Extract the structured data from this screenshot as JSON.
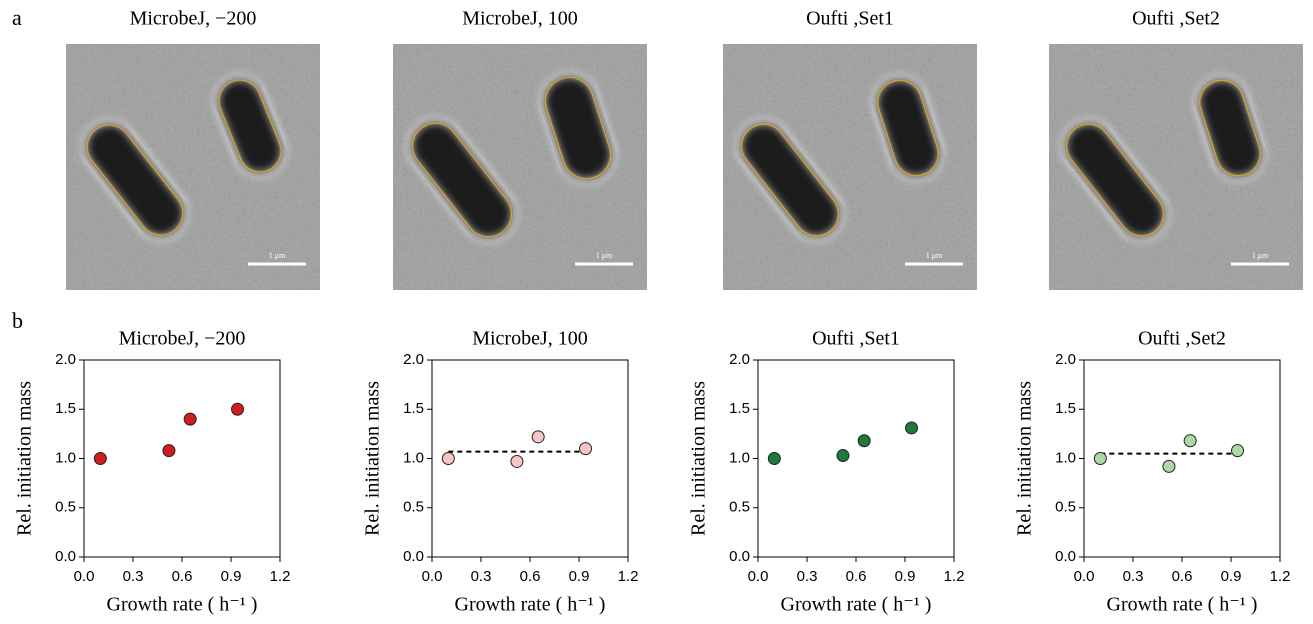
{
  "panel_labels": [
    "a",
    "b"
  ],
  "images": [
    {
      "title": "MicrobeJ, −200",
      "scale_bar": "1 μm"
    },
    {
      "title": "MicrobeJ, 100",
      "scale_bar": "1 μm"
    },
    {
      "title": "Oufti ,Set1",
      "scale_bar": "1 μm"
    },
    {
      "title": "Oufti ,Set2",
      "scale_bar": "1 μm"
    }
  ],
  "chart_data": [
    {
      "type": "scatter",
      "title": "MicrobeJ, −200",
      "x_label": "Growth rate ( h⁻¹ )",
      "y_label": "Rel. initiation mass",
      "x": [
        0.1,
        0.52,
        0.65,
        0.94
      ],
      "values": [
        1.0,
        1.08,
        1.4,
        1.5
      ],
      "color": "#d01c1c",
      "xlim": [
        0,
        1.2
      ],
      "xticks": [
        {
          "value": 0,
          "label": "0.0"
        },
        0.3,
        0.6,
        0.9,
        1.2
      ],
      "ylim": [
        0,
        2
      ],
      "yticks": [
        {
          "value": 0,
          "label": "0.0"
        },
        0.5,
        {
          "value": 1,
          "label": "1.0"
        },
        1.5,
        {
          "value": 2,
          "label": "2.0"
        }
      ]
    },
    {
      "type": "scatter",
      "title": "MicrobeJ, 100",
      "x_label": "Growth rate ( h⁻¹ )",
      "y_label": "Rel. initiation mass",
      "x": [
        0.1,
        0.52,
        0.65,
        0.94
      ],
      "values": [
        1.0,
        0.97,
        1.22,
        1.1
      ],
      "color": "#f6c6c6",
      "hline": 1.07,
      "xlim": [
        0,
        1.2
      ],
      "xticks": [
        {
          "value": 0,
          "label": "0.0"
        },
        0.3,
        0.6,
        0.9,
        1.2
      ],
      "ylim": [
        0,
        2
      ],
      "yticks": [
        {
          "value": 0,
          "label": "0.0"
        },
        0.5,
        {
          "value": 1,
          "label": "1.0"
        },
        1.5,
        {
          "value": 2,
          "label": "2.0"
        }
      ]
    },
    {
      "type": "scatter",
      "title": "Oufti ,Set1",
      "x_label": "Growth rate ( h⁻¹ )",
      "y_label": "Rel. initiation mass",
      "x": [
        0.1,
        0.52,
        0.65,
        0.94
      ],
      "values": [
        1.0,
        1.03,
        1.18,
        1.31
      ],
      "color": "#1b7a3a",
      "xlim": [
        0,
        1.2
      ],
      "xticks": [
        {
          "value": 0,
          "label": "0.0"
        },
        0.3,
        0.6,
        0.9,
        1.2
      ],
      "ylim": [
        0,
        2
      ],
      "yticks": [
        {
          "value": 0,
          "label": "0.0"
        },
        0.5,
        {
          "value": 1,
          "label": "1.0"
        },
        1.5,
        {
          "value": 2,
          "label": "2.0"
        }
      ]
    },
    {
      "type": "scatter",
      "title": "Oufti ,Set2",
      "x_label": "Growth rate ( h⁻¹ )",
      "y_label": "Rel. initiation mass",
      "x": [
        0.1,
        0.52,
        0.65,
        0.94
      ],
      "values": [
        1.0,
        0.92,
        1.18,
        1.08
      ],
      "color": "#addaa4",
      "hline": 1.05,
      "xlim": [
        0,
        1.2
      ],
      "xticks": [
        {
          "value": 0,
          "label": "0.0"
        },
        0.3,
        0.6,
        0.9,
        1.2
      ],
      "ylim": [
        0,
        2
      ],
      "yticks": [
        {
          "value": 0,
          "label": "0.0"
        },
        0.5,
        {
          "value": 1,
          "label": "1.0"
        },
        1.5,
        {
          "value": 2,
          "label": "2.0"
        }
      ]
    }
  ]
}
